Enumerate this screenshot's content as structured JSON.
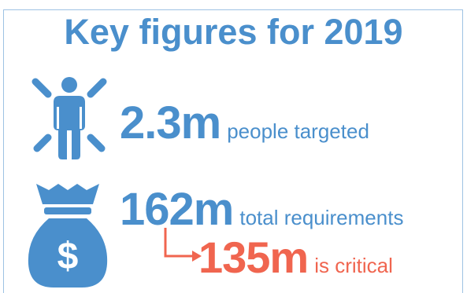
{
  "title": "Key figures for 2019",
  "people": {
    "value": "2.3m",
    "label": "people targeted"
  },
  "requirements": {
    "value": "162m",
    "label": "total requirements"
  },
  "critical": {
    "value": "135m",
    "label": "is critical"
  },
  "icons": {
    "people": "person-icon",
    "money": "money-bag-icon",
    "arrow": "arrow-icon"
  },
  "colors": {
    "primary_blue": "#4a8fcc",
    "accent_coral": "#f0654f",
    "frame_border": "#9ec2e3"
  }
}
